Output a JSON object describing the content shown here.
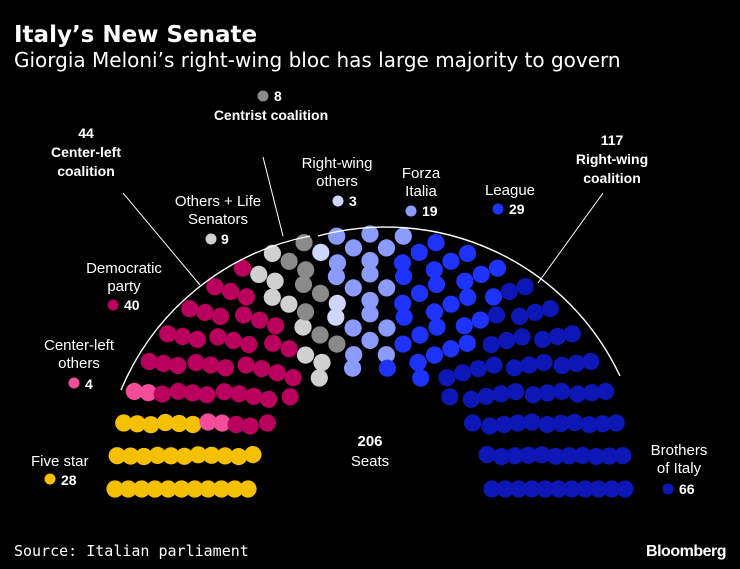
{
  "header": {
    "title": "Italy’s New Senate",
    "subtitle": "Giorgia Meloni’s right-wing bloc has large majority to govern"
  },
  "center": {
    "total": "206",
    "unit": "Seats"
  },
  "coalitions": {
    "center_left": {
      "value": "44",
      "label1": "Center-left",
      "label2": "coalition"
    },
    "centrist": {
      "value": "8",
      "label": "Centrist coalition",
      "color": "#8a8a8a"
    },
    "right_wing": {
      "value": "117",
      "label1": "Right-wing",
      "label2": "coalition"
    }
  },
  "labels": {
    "five_star": "Five star",
    "center_left_others_1": "Center-left",
    "center_left_others_2": "others",
    "democratic_1": "Democratic",
    "democratic_2": "party",
    "others_life_1": "Others + Life",
    "others_life_2": "Senators",
    "rw_others_1": "Right-wing",
    "rw_others_2": "others",
    "forza_1": "Forza",
    "forza_2": "Italia",
    "league": "League",
    "brothers_1": "Brothers",
    "brothers_2": "of Italy"
  },
  "footer": {
    "source": "Source: Italian parliament",
    "logo": "Bloomberg"
  },
  "chart_data": {
    "type": "parliament",
    "title": "Italy’s New Senate",
    "total_seats": 206,
    "series": [
      {
        "name": "Five star",
        "values": [
          28
        ],
        "color": "#f5c000"
      },
      {
        "name": "Center-left others",
        "values": [
          4
        ],
        "color": "#f24d9a"
      },
      {
        "name": "Democratic party",
        "values": [
          40
        ],
        "color": "#b8005c"
      },
      {
        "name": "Others + Life Senators",
        "values": [
          9
        ],
        "color": "#d0d0d0"
      },
      {
        "name": "Centrist coalition",
        "values": [
          8
        ],
        "color": "#8a8a8a"
      },
      {
        "name": "Right-wing others",
        "values": [
          3
        ],
        "color": "#cfd6ff"
      },
      {
        "name": "Forza Italia",
        "values": [
          19
        ],
        "color": "#8c9bff"
      },
      {
        "name": "League",
        "values": [
          29
        ],
        "color": "#1f33ff"
      },
      {
        "name": "Brothers of Italy",
        "values": [
          66
        ],
        "color": "#0d17b5"
      }
    ],
    "coalitions": [
      {
        "name": "Center-left coalition",
        "values": [
          44
        ]
      },
      {
        "name": "Centrist coalition",
        "values": [
          8
        ]
      },
      {
        "name": "Right-wing coalition",
        "values": [
          117
        ]
      }
    ]
  }
}
